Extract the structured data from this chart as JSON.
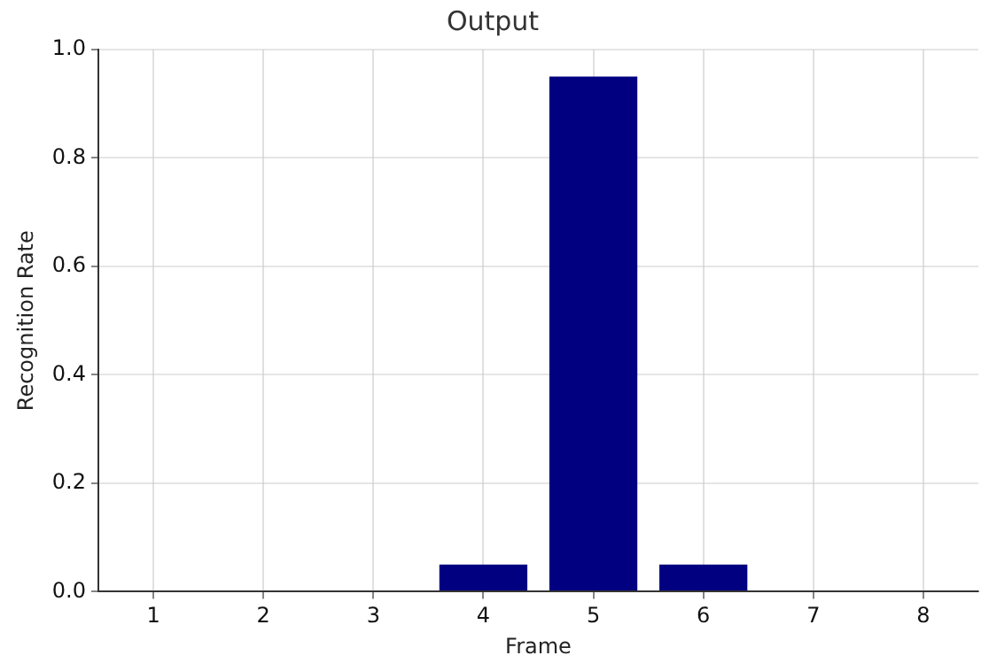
{
  "chart_data": {
    "type": "bar",
    "title": "Output",
    "xlabel": "Frame",
    "ylabel": "Recognition Rate",
    "categories": [
      "1",
      "2",
      "3",
      "4",
      "5",
      "6",
      "7",
      "8"
    ],
    "values": [
      0,
      0,
      0,
      0.05,
      0.95,
      0.05,
      0,
      0
    ],
    "color": "#000080",
    "ylim": [
      0,
      1
    ],
    "yticks": [
      {
        "value": 0,
        "label": "0.0"
      },
      {
        "value": 0.2,
        "label": "0.2"
      },
      {
        "value": 0.4,
        "label": "0.4"
      },
      {
        "value": 0.6,
        "label": "0.6"
      },
      {
        "value": 0.8,
        "label": "0.8"
      },
      {
        "value": 1,
        "label": "1.0"
      }
    ],
    "grid": true
  }
}
